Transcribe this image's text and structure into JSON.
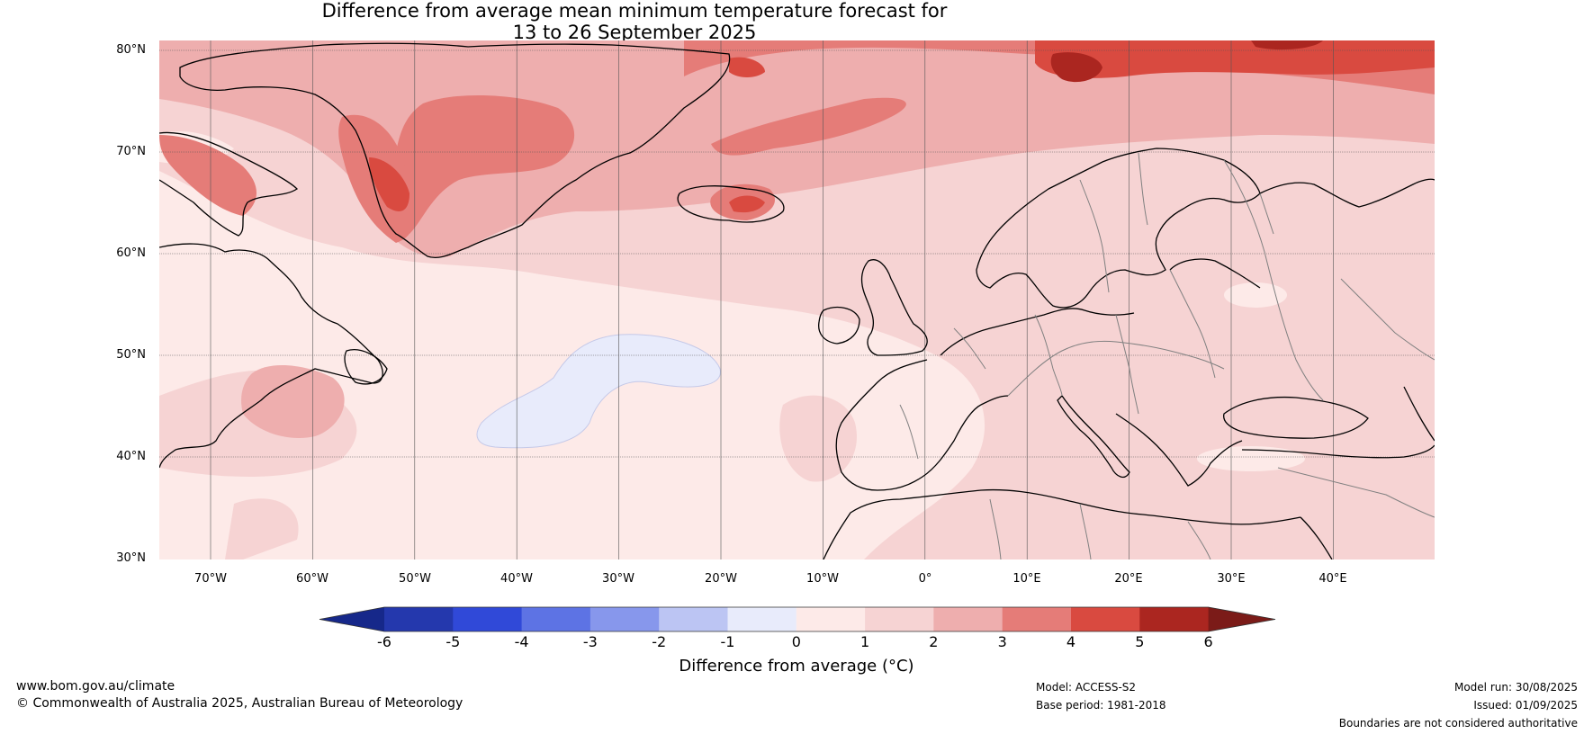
{
  "title": {
    "line1": "Difference from average mean minimum temperature forecast for",
    "line2": "13 to 26 September 2025"
  },
  "lat_labels": [
    "80°N",
    "70°N",
    "60°N",
    "50°N",
    "40°N",
    "30°N"
  ],
  "lon_labels": [
    "70°W",
    "60°W",
    "50°W",
    "40°W",
    "30°W",
    "20°W",
    "10°W",
    "0°",
    "10°E",
    "20°E",
    "30°E",
    "40°E"
  ],
  "colorbar": {
    "ticks": [
      "-6",
      "-5",
      "-4",
      "-3",
      "-2",
      "-1",
      "0",
      "1",
      "2",
      "3",
      "4",
      "5",
      "6"
    ],
    "colors": [
      "#16288a",
      "#2438ad",
      "#3049d8",
      "#5d73e4",
      "#8797ec",
      "#bcc5f3",
      "#e8ebfb",
      "#fdeae8",
      "#f6d3d3",
      "#eeaeae",
      "#e57c78",
      "#d94a40",
      "#ab2620",
      "#7b1b18"
    ],
    "label": "Difference from average (°C)"
  },
  "footer": {
    "website": "www.bom.gov.au/climate",
    "copyright": "© Commonwealth of Australia 2025, Australian Bureau of Meteorology",
    "model": "Model: ACCESS-S2",
    "base_period": "Base period: 1981-2018",
    "model_run": "Model run: 30/08/2025",
    "issued": "Issued: 01/09/2025",
    "boundaries": "Boundaries are not considered authoritative"
  },
  "colors": {
    "land_outline": "#000000",
    "border": "#808080",
    "grid": "#555555"
  }
}
